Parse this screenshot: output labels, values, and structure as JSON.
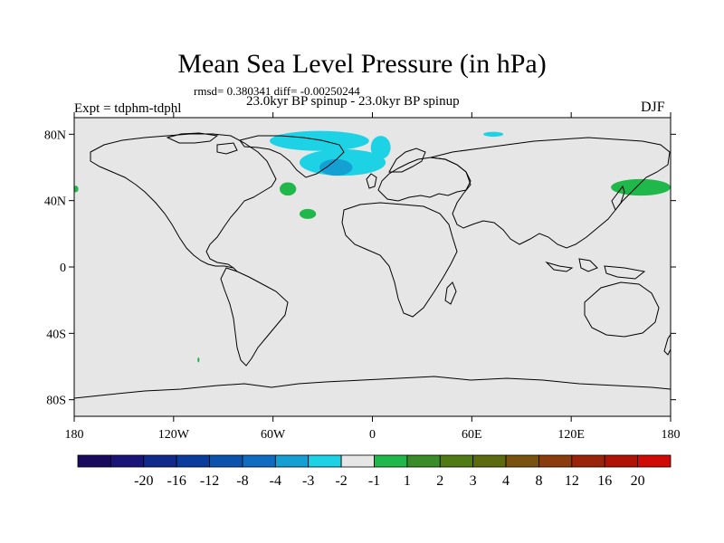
{
  "chart_data": {
    "type": "heatmap",
    "title": "Mean Sea Level Pressure (in hPa)",
    "stats": "rmsd= 0.380341 diff= -0.00250244",
    "subtitle": "23.0kyr BP spinup - 23.0kyr BP spinup",
    "experiment": "Expt = tdphm-tdphl",
    "season": "DJF",
    "x_ticks": [
      {
        "value": -180,
        "label": "180"
      },
      {
        "value": -120,
        "label": "120W"
      },
      {
        "value": -60,
        "label": "60W"
      },
      {
        "value": 0,
        "label": "0"
      },
      {
        "value": 60,
        "label": "60E"
      },
      {
        "value": 120,
        "label": "120E"
      },
      {
        "value": 180,
        "label": "180"
      }
    ],
    "y_ticks": [
      {
        "value": 80,
        "label": "80N"
      },
      {
        "value": 40,
        "label": "40N"
      },
      {
        "value": 0,
        "label": "0"
      },
      {
        "value": -40,
        "label": "40S"
      },
      {
        "value": -80,
        "label": "80S"
      }
    ],
    "xlim": [
      -180,
      180
    ],
    "ylim": [
      -90,
      90
    ],
    "colorbar": {
      "colors": [
        "#1a0a5e",
        "#1b1478",
        "#102a8c",
        "#0a3c9e",
        "#0b52ad",
        "#0f6cc0",
        "#14a0d2",
        "#1ed2e6",
        "#e6e6e6",
        "#20b84a",
        "#3a8c28",
        "#4f7a14",
        "#5c6a10",
        "#7a5210",
        "#8a3c0c",
        "#9a240a",
        "#b01208",
        "#d00a05"
      ],
      "labels": [
        "-20",
        "-16",
        "-12",
        "-8",
        "-4",
        "-3",
        "-2",
        "-1",
        "1",
        "2",
        "3",
        "4",
        "8",
        "12",
        "16",
        "20"
      ]
    },
    "regions": [
      {
        "level": "-2",
        "color": "#1ed2e6",
        "shape": "ellipse",
        "lon": -32,
        "lat": 76,
        "rlon": 30,
        "rlat": 6
      },
      {
        "level": "-2",
        "color": "#1ed2e6",
        "shape": "ellipse",
        "lon": -18,
        "lat": 63,
        "rlon": 26,
        "rlat": 8
      },
      {
        "level": "-2",
        "color": "#1ed2e6",
        "shape": "ellipse",
        "lon": 5,
        "lat": 72,
        "rlon": 6,
        "rlat": 7
      },
      {
        "level": "-2",
        "color": "#1ed2e6",
        "shape": "ellipse",
        "lon": 73,
        "lat": 80,
        "rlon": 6,
        "rlat": 1.5
      },
      {
        "level": "-3",
        "color": "#14a0d2",
        "shape": "ellipse",
        "lon": -22,
        "lat": 60,
        "rlon": 10,
        "rlat": 5
      },
      {
        "level": "2",
        "color": "#20b84a",
        "shape": "ellipse",
        "lon": -51,
        "lat": 47,
        "rlon": 5,
        "rlat": 4
      },
      {
        "level": "2",
        "color": "#20b84a",
        "shape": "ellipse",
        "lon": -39,
        "lat": 32,
        "rlon": 5,
        "rlat": 3
      },
      {
        "level": "2",
        "color": "#20b84a",
        "shape": "ellipse",
        "lon": 162,
        "lat": 48,
        "rlon": 18,
        "rlat": 5
      },
      {
        "level": "2",
        "color": "#20b84a",
        "shape": "ellipse",
        "lon": -179,
        "lat": 47,
        "rlon": 1.5,
        "rlat": 2
      },
      {
        "level": "2",
        "color": "#20b84a",
        "shape": "ellipse",
        "lon": -105,
        "lat": -56,
        "rlon": 0.6,
        "rlat": 1.5
      }
    ]
  }
}
